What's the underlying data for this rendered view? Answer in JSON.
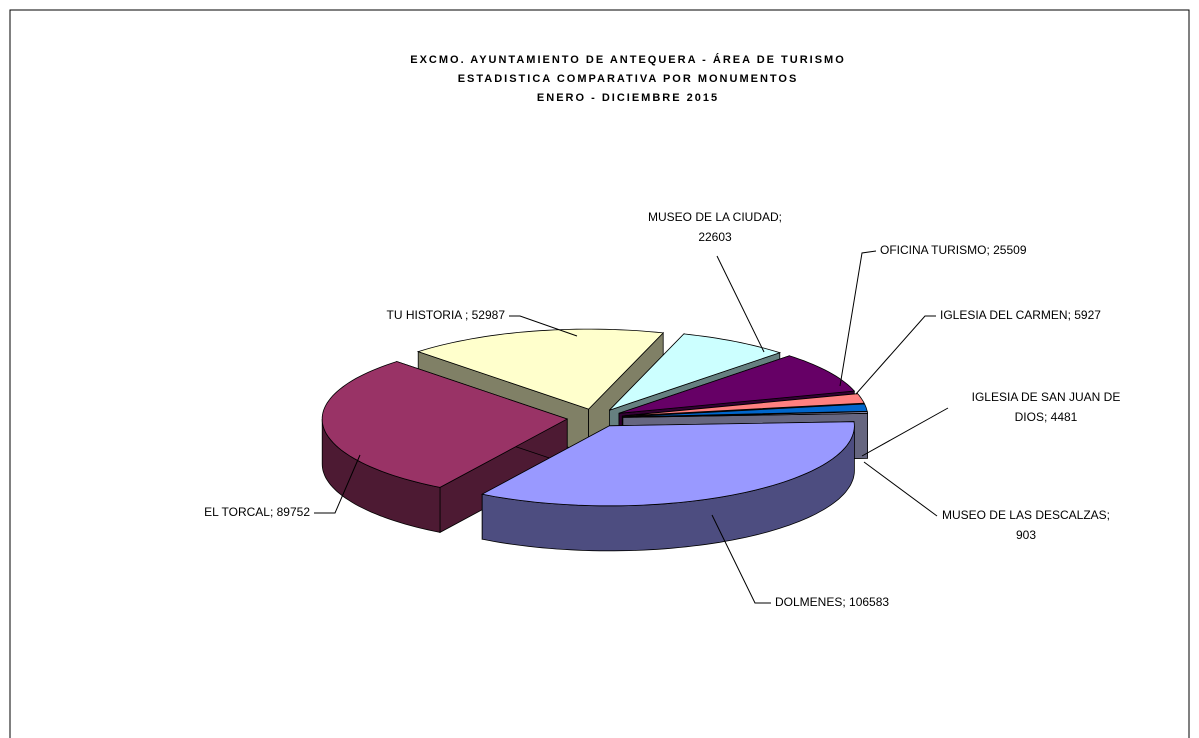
{
  "chart_data": {
    "type": "pie3d",
    "title": [
      "EXCMO. AYUNTAMIENTO DE ANTEQUERA - ÁREA DE TURISMO",
      "ESTADISTICA COMPARATIVA POR MONUMENTOS",
      "ENERO - DICIEMBRE 2015"
    ],
    "categories": [
      "DOLMENES",
      "EL TORCAL",
      "TU HISTORIA",
      "MUSEO DE LA CIUDAD",
      "OFICINA TURISMO",
      "IGLESIA DEL CARMEN",
      "IGLESIA DE SAN JUAN DE DIOS",
      "MUSEO DE LAS DESCALZAS"
    ],
    "values": [
      106583,
      89752,
      52987,
      22603,
      25509,
      5927,
      4481,
      903
    ],
    "value_labels": [
      [
        "DOLMENES; 106583"
      ],
      [
        "EL TORCAL; 89752"
      ],
      [
        "TU HISTORIA ; 52987"
      ],
      [
        "MUSEO DE LA CIUDAD;",
        "22603"
      ],
      [
        "OFICINA TURISMO; 25509"
      ],
      [
        "IGLESIA DEL CARMEN; 5927"
      ],
      [
        "IGLESIA DE SAN JUAN DE",
        "DIOS; 4481"
      ],
      [
        "MUSEO DE LAS DESCALZAS;",
        "903"
      ]
    ],
    "colors": [
      "#9999ff",
      "#993366",
      "#ffffcc",
      "#ccffff",
      "#660066",
      "#ff8080",
      "#0066cc",
      "#ccccff"
    ]
  }
}
